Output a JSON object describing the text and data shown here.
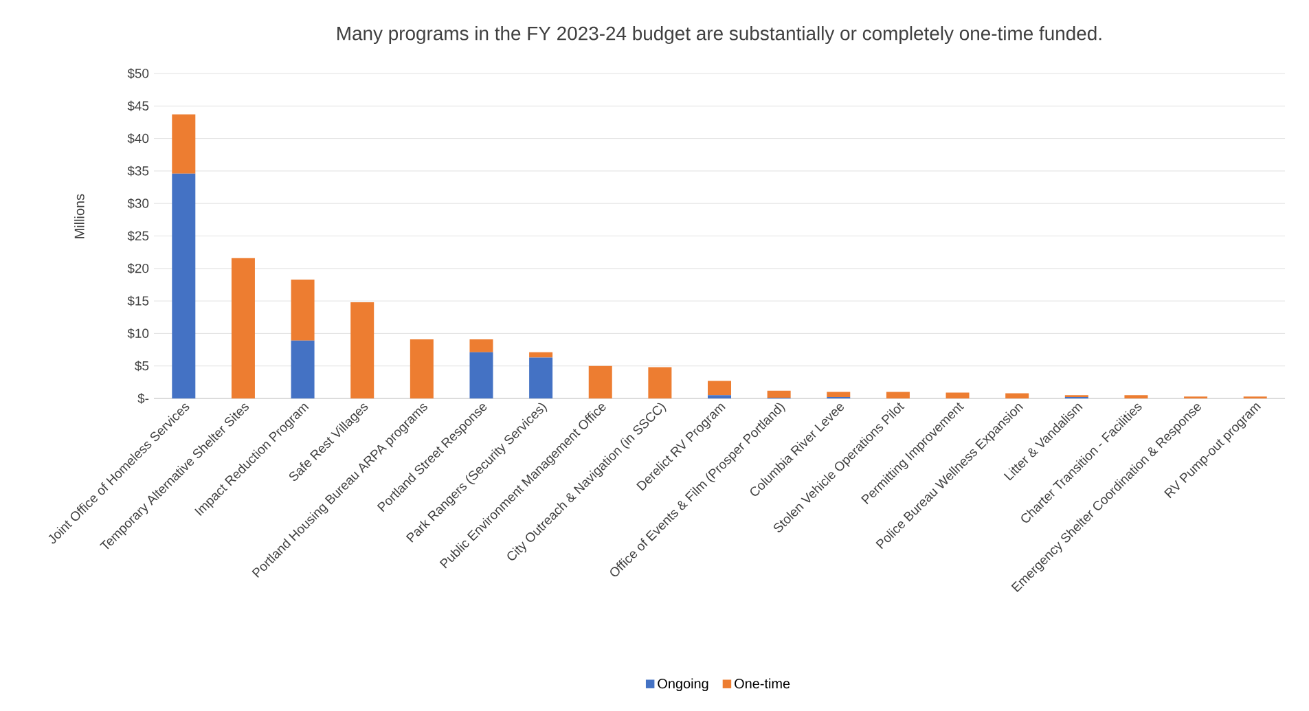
{
  "chart_data": {
    "type": "bar",
    "title": "Many programs in the FY 2023-24 budget are substantially or completely one-time funded.",
    "ylabel": "Millions",
    "categories": [
      "Joint Office of Homeless Services",
      "Temporary Alternative Shelter Sites",
      "Impact Reduction Program",
      "Safe Rest Villages",
      "Portland Housing Bureau ARPA programs",
      "Portland Street Response",
      "Park Rangers (Security Services)",
      "Public Environment Management Office",
      "City Outreach & Navigation (in SSCC)",
      "Derelict RV Program",
      "Office of Events & Film (Prosper Portland)",
      "Columbia River Levee",
      "Stolen Vehicle Operations Pilot",
      "Permitting Improvement",
      "Police Bureau Wellness Expansion",
      "Litter & Vandalism",
      "Charter Transition - Facilities",
      "Emergency Shelter Coordination & Response",
      "RV Pump-out program"
    ],
    "stacked": true,
    "series": [
      {
        "name": "Ongoing",
        "color": "#4472c4",
        "values": [
          34.6,
          0,
          8.9,
          0,
          0,
          7.1,
          6.3,
          0,
          0,
          0.5,
          0.1,
          0.2,
          0,
          0,
          0,
          0.2,
          0,
          0,
          0
        ]
      },
      {
        "name": "One-time",
        "color": "#ed7d31",
        "values": [
          9.1,
          21.6,
          9.4,
          14.8,
          9.1,
          2.0,
          0.8,
          5.0,
          4.8,
          2.2,
          1.1,
          0.8,
          1.0,
          0.9,
          0.8,
          0.3,
          0.5,
          0.3,
          0.3
        ]
      }
    ],
    "ylim": [
      0,
      50
    ],
    "yticks": [
      {
        "value": 0,
        "label": "$-"
      },
      {
        "value": 5,
        "label": "$5"
      },
      {
        "value": 10,
        "label": "$10"
      },
      {
        "value": 15,
        "label": "$15"
      },
      {
        "value": 20,
        "label": "$20"
      },
      {
        "value": 25,
        "label": "$25"
      },
      {
        "value": 30,
        "label": "$30"
      },
      {
        "value": 35,
        "label": "$35"
      },
      {
        "value": 40,
        "label": "$40"
      },
      {
        "value": 45,
        "label": "$45"
      },
      {
        "value": 50,
        "label": "$50"
      }
    ],
    "grid": "y",
    "legend": "bottom"
  }
}
